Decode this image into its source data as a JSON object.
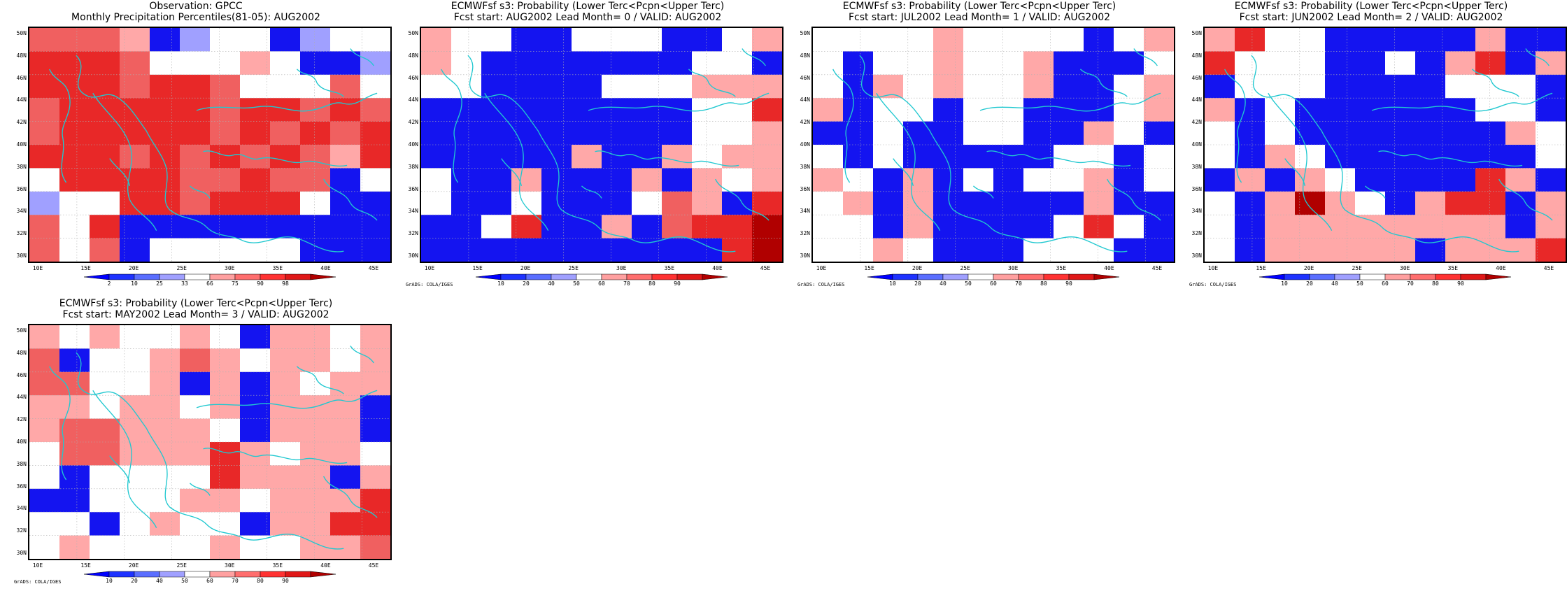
{
  "panels": [
    {
      "title_line1": "Observation: GPCC",
      "title_line2": "Monthly Precipitation Percentiles(81-05): AUG2002",
      "colorbar_labels": [
        "2",
        "10",
        "25",
        "33",
        "66",
        "75",
        "90",
        "98"
      ],
      "credit": "",
      "grid": [
        "rrrlBLwwBLww",
        "RRRrwwwlwBBL",
        "RRRrRRrwwwrw",
        "rRRRRRrRRrRr",
        "rRRRRRrRrRrR",
        "RRRrRrRrRrlR",
        "wRRRRrrRrrBw",
        "LwwRRrRRRwBB",
        "rwRBBBBBBBBB",
        "rwrBwwwwwBBB"
      ]
    },
    {
      "title_line1": "ECMWFsf s3: Probability (Lower Terc<Pcpn<Upper Terc)",
      "title_line2": "Fcst start: AUG2002  Lead Month= 0 / VALID: AUG2002",
      "colorbar_labels": [
        "10",
        "20",
        "40",
        "50",
        "60",
        "70",
        "80",
        "90"
      ],
      "credit": "GrADS: COLA/IGES",
      "grid": [
        "lwwBBwwwBBwl",
        "lwBBBBBBBwwB",
        "wwBBBBwwwlll",
        "BBBBBBBBBwwR",
        "BBBBBBBBBwwl",
        "BBBBBlBBlwll",
        "wBBlBBBlBlwl",
        "wBBwBBBwrlBR",
        "BBwRBBlBrRRD",
        "BBBBBBBBBBRD"
      ]
    },
    {
      "title_line1": "ECMWFsf s3: Probability (Lower Terc<Pcpn<Upper Terc)",
      "title_line2": "Fcst start: JUL2002  Lead Month= 1 / VALID: AUG2002",
      "colorbar_labels": [
        "10",
        "20",
        "40",
        "50",
        "60",
        "70",
        "80",
        "90"
      ],
      "credit": "GrADS: COLA/IGES",
      "grid": [
        "wwwwlwwwwBwl",
        "wBwwlwwlBBBw",
        "wBlwlwwlBBwl",
        "lBwwBwwBBBwl",
        "BBwBBwwBBlwB",
        "wBwBBBBBwwBw",
        "lwBlBwBwwlBw",
        "wlBlBBBBBlBB",
        "wwBlBBBBwRwB",
        "wwlwBBBwwwBB"
      ]
    },
    {
      "title_line1": "ECMWFsf s3: Probability (Lower Terc<Pcpn<Upper Terc)",
      "title_line2": "Fcst start: JUN2002  Lead Month= 2 / VALID: AUG2002",
      "colorbar_labels": [
        "10",
        "20",
        "40",
        "50",
        "60",
        "70",
        "80",
        "90"
      ],
      "credit": "GrADS: COLA/IGES",
      "grid": [
        "lRwwBBBBBlBB",
        "RwwwBBwBlRBl",
        "BwwwBBBBwwwB",
        "lBwBBBBBBwwB",
        "wBwBBBBBBBlw",
        "wBlwBBBBBBBw",
        "BlBlwBBBBRlB",
        "wBlDlwBlRRBl",
        "wBllllllllBl",
        "wBlllllBlllR"
      ]
    },
    {
      "title_line1": "ECMWFsf s3: Probability (Lower Terc<Pcpn<Upper Terc)",
      "title_line2": "Fcst start: MAY2002  Lead Month= 3 / VALID: AUG2002",
      "colorbar_labels": [
        "10",
        "20",
        "40",
        "50",
        "60",
        "70",
        "80",
        "90"
      ],
      "credit": "GrADS: COLA/IGES",
      "grid": [
        "lwlwwlwBllwl",
        "rBwwlrlwllwl",
        "rrwwlBlBlwll",
        "llwllwlBlllB",
        "lrrlllwBlllB",
        "wrrlllRlwllw",
        "wBwwwwRlllBl",
        "BBwwwllwlllR",
        "wwBwlwwBllRR",
        "wlwwwwlwwllr"
      ]
    }
  ],
  "ylabels": [
    "50N",
    "48N",
    "46N",
    "44N",
    "42N",
    "40N",
    "38N",
    "36N",
    "34N",
    "32N",
    "30N"
  ],
  "xlabels": [
    "10E",
    "15E",
    "20E",
    "25E",
    "30E",
    "35E",
    "40E",
    "45E"
  ],
  "colors": {
    "legend": [
      "#0000ff",
      "#1e32ff",
      "#5a6eff",
      "#a0a0ff",
      "#ffffff",
      "#ffa0a0",
      "#ff6e6e",
      "#ff3232",
      "#e01818",
      "#b00000"
    ],
    "cells": {
      "B": "#1414f0",
      "b": "#5a6eff",
      "L": "#a0a0ff",
      "w": "#ffffff",
      "l": "#ffa8a8",
      "r": "#f06060",
      "R": "#e82828",
      "D": "#b00000"
    },
    "coast": "#20c8d0"
  }
}
